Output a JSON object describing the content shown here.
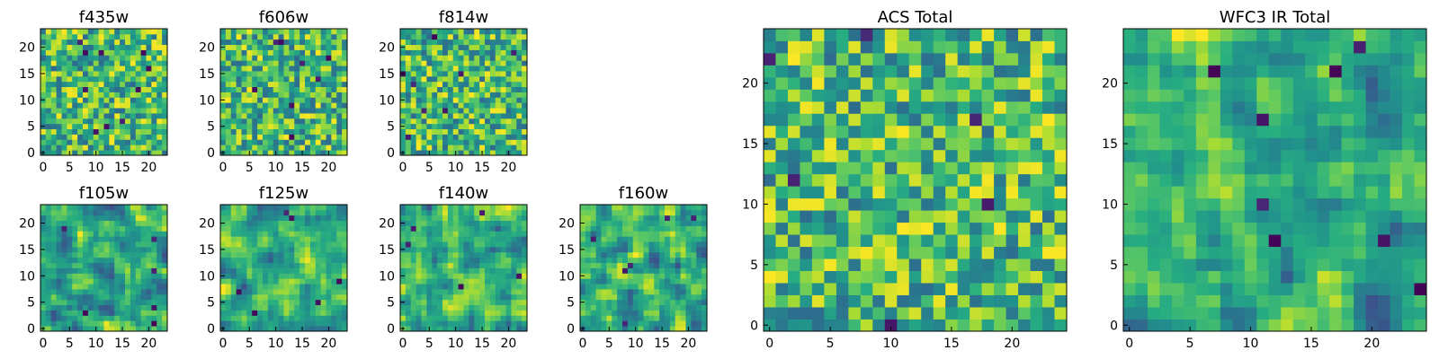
{
  "chart_data": {
    "type": "heatmap",
    "colormap": "viridis",
    "grid": false,
    "panels": [
      {
        "id": "f435w",
        "title": "f435w",
        "size": 24,
        "xticks": [
          "0",
          "5",
          "10",
          "15",
          "20"
        ],
        "yticks": [
          "0",
          "5",
          "10",
          "15",
          "20"
        ],
        "seed": 11,
        "smooth": 0,
        "dark_cells": 10
      },
      {
        "id": "f606w",
        "title": "f606w",
        "size": 24,
        "xticks": [
          "0",
          "5",
          "10",
          "15",
          "20"
        ],
        "yticks": [
          "0",
          "5",
          "10",
          "15",
          "20"
        ],
        "seed": 23,
        "smooth": 0,
        "dark_cells": 8
      },
      {
        "id": "f814w",
        "title": "f814w",
        "size": 24,
        "xticks": [
          "0",
          "5",
          "10",
          "15",
          "20"
        ],
        "yticks": [
          "0",
          "5",
          "10",
          "15",
          "20"
        ],
        "seed": 37,
        "smooth": 0,
        "dark_cells": 8
      },
      {
        "id": "f105w",
        "title": "f105w",
        "size": 24,
        "xticks": [
          "0",
          "5",
          "10",
          "15",
          "20"
        ],
        "yticks": [
          "0",
          "5",
          "10",
          "15",
          "20"
        ],
        "seed": 41,
        "smooth": 1,
        "dark_cells": 6
      },
      {
        "id": "f125w",
        "title": "f125w",
        "size": 24,
        "xticks": [
          "0",
          "5",
          "10",
          "15",
          "20"
        ],
        "yticks": [
          "0",
          "5",
          "10",
          "15",
          "20"
        ],
        "seed": 53,
        "smooth": 1,
        "dark_cells": 6
      },
      {
        "id": "f140w",
        "title": "f140w",
        "size": 24,
        "xticks": [
          "0",
          "5",
          "10",
          "15",
          "20"
        ],
        "yticks": [
          "0",
          "5",
          "10",
          "15",
          "20"
        ],
        "seed": 67,
        "smooth": 1,
        "dark_cells": 5
      },
      {
        "id": "f160w",
        "title": "f160w",
        "size": 24,
        "xticks": [
          "0",
          "5",
          "10",
          "15",
          "20"
        ],
        "yticks": [
          "0",
          "5",
          "10",
          "15",
          "20"
        ],
        "seed": 79,
        "smooth": 1,
        "dark_cells": 6
      },
      {
        "id": "acs_total",
        "title": "ACS Total",
        "size": 25,
        "xticks": [
          "0",
          "5",
          "10",
          "15",
          "20"
        ],
        "yticks": [
          "0",
          "5",
          "10",
          "15",
          "20"
        ],
        "seed": 97,
        "smooth": 0,
        "dark_cells": 6
      },
      {
        "id": "wfc3_ir_total",
        "title": "WFC3 IR Total",
        "size": 25,
        "xticks": [
          "0",
          "5",
          "10",
          "15",
          "20"
        ],
        "yticks": [
          "0",
          "5",
          "10",
          "15",
          "20"
        ],
        "seed": 131,
        "smooth": 1,
        "dark_cells": 8
      }
    ]
  }
}
